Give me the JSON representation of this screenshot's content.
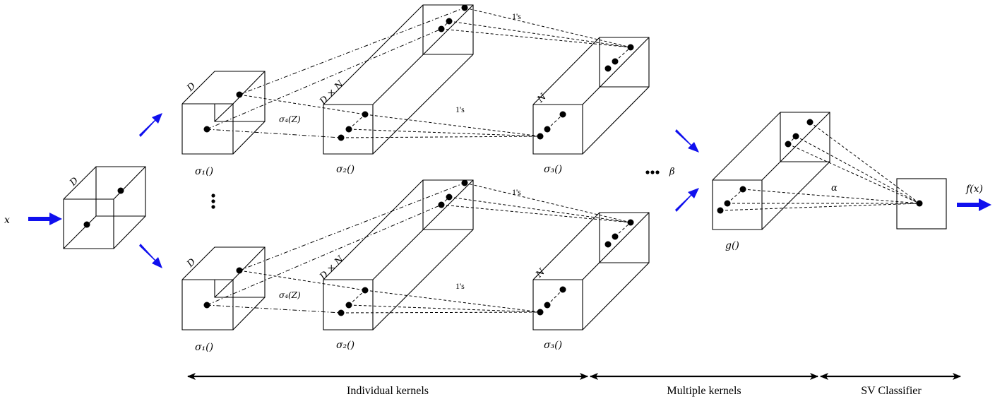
{
  "labels": {
    "input": "x",
    "output": "f(x)",
    "cube_dim_d": "D",
    "cube_dim_dn": "D × N",
    "cube_dim_n": "N",
    "sigma1": "σ₁()",
    "sigma2": "σ₂()",
    "sigma3": "σ₃()",
    "sigma4": "σ₄(Z)",
    "ones": "1's",
    "g": "g()",
    "alpha": "α",
    "beta": "β",
    "ellipsis_h": "•••",
    "ellipsis_v": "⋮"
  },
  "sections": [
    {
      "label": "Individual kernels"
    },
    {
      "label": "Multiple kernels"
    },
    {
      "label": "SV Classifier"
    }
  ],
  "colors": {
    "arrow": "#1010ee",
    "stroke": "#000000"
  }
}
